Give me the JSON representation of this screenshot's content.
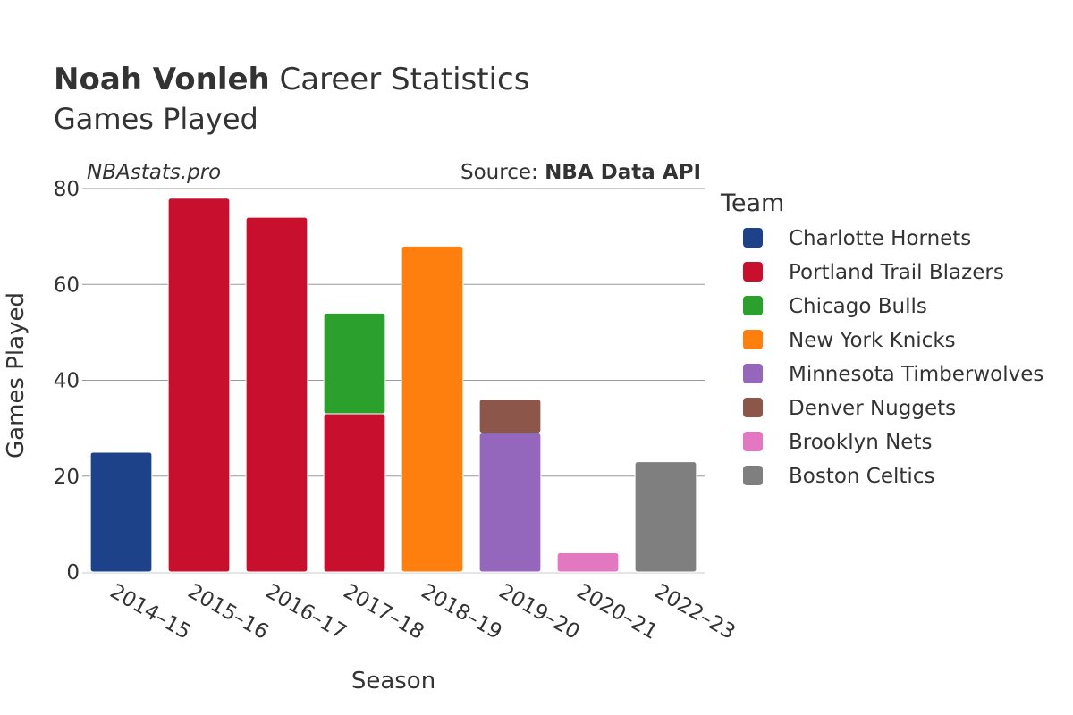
{
  "title": {
    "player": "Noah Vonleh",
    "rest": " Career Statistics",
    "subtitle": "Games Played"
  },
  "watermark": "NBAstats.pro",
  "source": {
    "label": "Source: ",
    "value": "NBA Data API"
  },
  "chart_data": {
    "type": "bar",
    "stacked": true,
    "categories": [
      "2014–15",
      "2015–16",
      "2016–17",
      "2017–18",
      "2018–19",
      "2019–20",
      "2020–21",
      "2022–23"
    ],
    "series": [
      {
        "name": "Charlotte Hornets",
        "color": "#1d428a",
        "values": [
          25,
          0,
          0,
          0,
          0,
          0,
          0,
          0
        ]
      },
      {
        "name": "Portland Trail Blazers",
        "color": "#c8102e",
        "values": [
          0,
          78,
          74,
          33,
          0,
          0,
          0,
          0
        ]
      },
      {
        "name": "Chicago Bulls",
        "color": "#2ca02c",
        "values": [
          0,
          0,
          0,
          21,
          0,
          0,
          0,
          0
        ]
      },
      {
        "name": "New York Knicks",
        "color": "#ff7f0e",
        "values": [
          0,
          0,
          0,
          0,
          68,
          0,
          0,
          0
        ]
      },
      {
        "name": "Minnesota Timberwolves",
        "color": "#9467bd",
        "values": [
          0,
          0,
          0,
          0,
          0,
          29,
          0,
          0
        ]
      },
      {
        "name": "Denver Nuggets",
        "color": "#8c564b",
        "values": [
          0,
          0,
          0,
          0,
          0,
          7,
          0,
          0
        ]
      },
      {
        "name": "Brooklyn Nets",
        "color": "#e377c2",
        "values": [
          0,
          0,
          0,
          0,
          0,
          0,
          4,
          0
        ]
      },
      {
        "name": "Boston Celtics",
        "color": "#7f7f7f",
        "values": [
          0,
          0,
          0,
          0,
          0,
          0,
          0,
          23
        ]
      }
    ],
    "xlabel": "Season",
    "ylabel": "Games Played",
    "ylim": [
      0,
      80
    ],
    "yticks": [
      0,
      20,
      40,
      60,
      80
    ],
    "grid": true,
    "legend": {
      "title": "Team",
      "placement": "right"
    }
  }
}
